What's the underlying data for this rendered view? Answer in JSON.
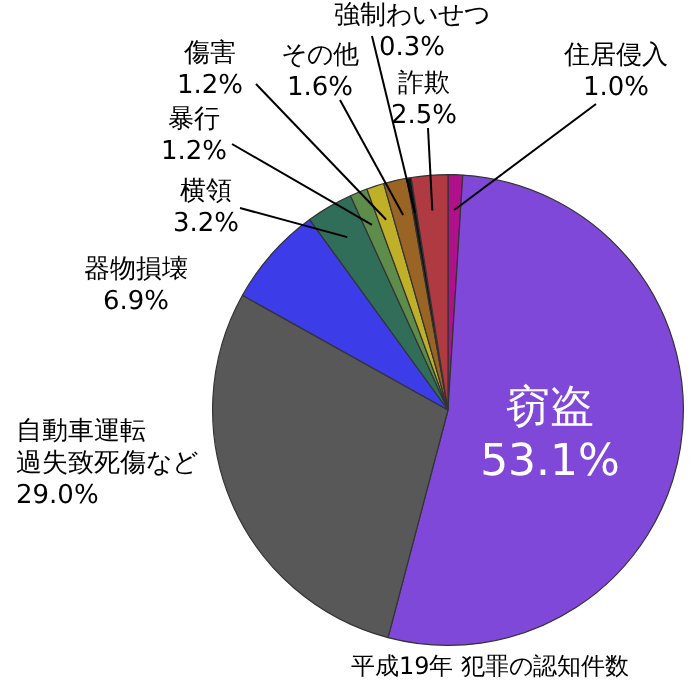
{
  "chart_data": {
    "type": "pie",
    "title": "平成19年 犯罪の認知件数",
    "categories": [
      "住居侵入",
      "窃盗",
      "自動車運転過失致死傷など",
      "器物損壊",
      "横領",
      "暴行",
      "傷害",
      "その他",
      "強制わいせつ",
      "詐欺"
    ],
    "values": [
      1.0,
      53.1,
      29.0,
      6.9,
      3.2,
      1.2,
      1.2,
      1.6,
      0.3,
      2.5
    ],
    "colors": [
      "#b0108a",
      "#8048d8",
      "#585858",
      "#3c3ce8",
      "#306e5a",
      "#5e8c4a",
      "#c0b028",
      "#9a6424",
      "#141414",
      "#b03a42"
    ],
    "value_labels": [
      "1.0%",
      "53.1%",
      "29.0%",
      "6.9%",
      "3.2%",
      "1.2%",
      "1.2%",
      "1.6%",
      "0.3%",
      "2.5%"
    ]
  }
}
